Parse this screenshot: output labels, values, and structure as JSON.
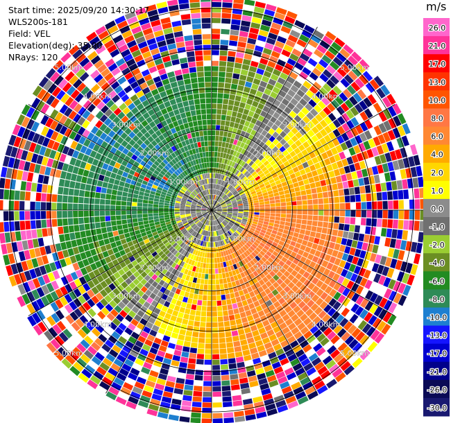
{
  "header": {
    "start_time": "Start time: 2025/09/20 14:30:17",
    "instrument": "WLS200s-181",
    "field": "Field: VEL",
    "elevation": "Elevation(deg): 35.00",
    "nrays": "NRays: 120"
  },
  "chart_data": {
    "type": "heatmap",
    "projection": "polar-ppi",
    "rings_km": [
      1,
      2,
      3,
      4,
      5
    ],
    "ring_labels": [
      "1.00km",
      "2.00km",
      "3.00km",
      "4.00km",
      "5.00km"
    ],
    "max_range_km": 5.3,
    "n_rays": 120,
    "n_gates": 40,
    "colorbar": {
      "unit": "m/s",
      "ticks": [
        "26.0",
        "21.0",
        "17.0",
        "13.0",
        "10.0",
        "8.0",
        "6.0",
        "4.0",
        "2.0",
        "1.0",
        "0.0",
        "-1.0",
        "-2.0",
        "-4.0",
        "-6.0",
        "-8.0",
        "-10.0",
        "-13.0",
        "-17.0",
        "-21.0",
        "-26.0",
        "-30.0"
      ],
      "bin_colors": [
        "#ff66cc",
        "#ff3399",
        "#ff0000",
        "#ff3300",
        "#ff5500",
        "#ff7744",
        "#ff8833",
        "#ffaa00",
        "#ffd700",
        "#ffff00",
        "#8c8c8c",
        "#707070",
        "#9acd32",
        "#6b8e23",
        "#228b22",
        "#2e8b57",
        "#1e7fd0",
        "#1515ff",
        "#0000d0",
        "#00008b",
        "#0a0a55",
        "#191970"
      ]
    },
    "field_model": "radial velocity: yellow/orange (positive) on the east and south, green/blue (negative) on the north-west, grey near zero at the centre, noisy multi-colour ring beyond ~3.6 km"
  }
}
